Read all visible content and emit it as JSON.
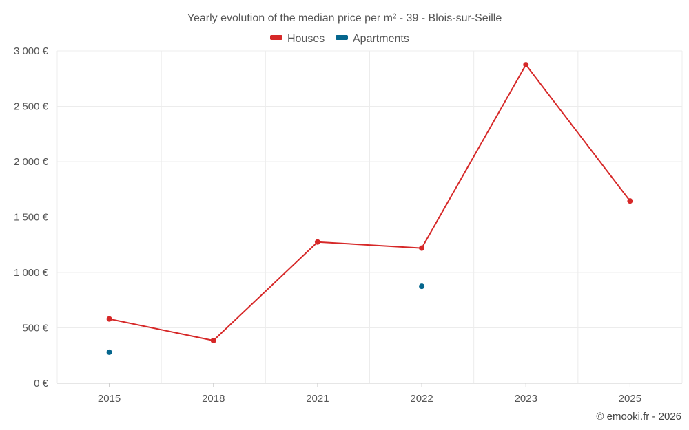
{
  "chart_data": {
    "type": "line",
    "title": "Yearly evolution of the median price per m² - 39 - Blois-sur-Seille",
    "categories": [
      "2015",
      "2018",
      "2021",
      "2022",
      "2023",
      "2025"
    ],
    "series": [
      {
        "name": "Houses",
        "color": "#d62828",
        "values": [
          580,
          385,
          1275,
          1220,
          2875,
          1645
        ]
      },
      {
        "name": "Apartments",
        "color": "#05668d",
        "values": [
          280,
          null,
          null,
          875,
          null,
          null
        ]
      }
    ],
    "y_ticks": [
      0,
      500,
      1000,
      1500,
      2000,
      2500,
      3000
    ],
    "y_tick_labels": [
      "0 €",
      "500 €",
      "1 000 €",
      "1 500 €",
      "2 000 €",
      "2 500 €",
      "3 000 €"
    ],
    "ylim": [
      0,
      3000
    ],
    "xlabel": "",
    "ylabel": "",
    "legend_position": "top-center",
    "grid": true
  },
  "credit": "© emooki.fr - 2026"
}
